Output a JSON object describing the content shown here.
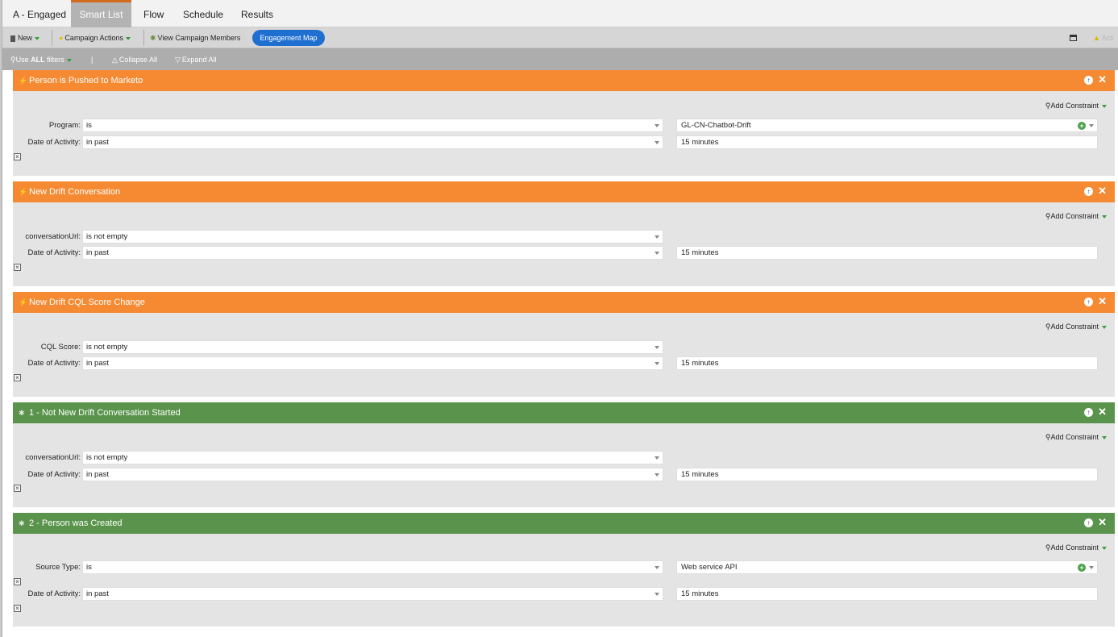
{
  "tabs": [
    {
      "label": "A - Engaged"
    },
    {
      "label": "Smart List"
    },
    {
      "label": "Flow"
    },
    {
      "label": "Schedule"
    },
    {
      "label": "Results"
    }
  ],
  "toolbar": {
    "new_label": "New",
    "campaign_actions_label": "Campaign Actions",
    "view_members_label": "View Campaign Members",
    "engagement_map_label": "Engagement Map",
    "activate_label": "Acti"
  },
  "filterbar": {
    "use_prefix": "Use ",
    "use_bold": "ALL",
    "use_suffix": " filters",
    "separator": "|",
    "collapse_label": "Collapse All",
    "expand_label": "Expand All"
  },
  "add_constraint_label": "Add Constraint",
  "filters": [
    {
      "title": "Person is Pushed to Marketo",
      "rows": [
        {
          "label": "Program:",
          "operator": "is",
          "value": "GL-CN-Chatbot-Drift"
        },
        {
          "label": "Date of Activity:",
          "operator": "in past",
          "value": "15 minutes"
        }
      ]
    },
    {
      "title": "New Drift Conversation",
      "rows": [
        {
          "label": "conversationUrl:",
          "operator": "is not empty"
        },
        {
          "label": "Date of Activity:",
          "operator": "in past",
          "value": "15 minutes"
        }
      ]
    },
    {
      "title": "New Drift CQL Score Change",
      "rows": [
        {
          "label": "CQL Score:",
          "operator": "is not empty"
        },
        {
          "label": "Date of Activity:",
          "operator": "in past",
          "value": "15 minutes"
        }
      ]
    },
    {
      "title": "1 - Not New Drift Conversation Started",
      "rows": [
        {
          "label": "conversationUrl:",
          "operator": "is not empty"
        },
        {
          "label": "Date of Activity:",
          "operator": "in past",
          "value": "15 minutes"
        }
      ]
    },
    {
      "title": "2 - Person was Created",
      "rows": [
        {
          "label": "Source Type:",
          "operator": "is",
          "value": "Web service API"
        },
        {
          "label": "Date of Activity:",
          "operator": "in past",
          "value": "15 minutes"
        }
      ]
    }
  ],
  "colors": {
    "trigger_header": "#f58a33",
    "filter_header": "#5a944c",
    "engagement_pill": "#1f6fd1"
  }
}
